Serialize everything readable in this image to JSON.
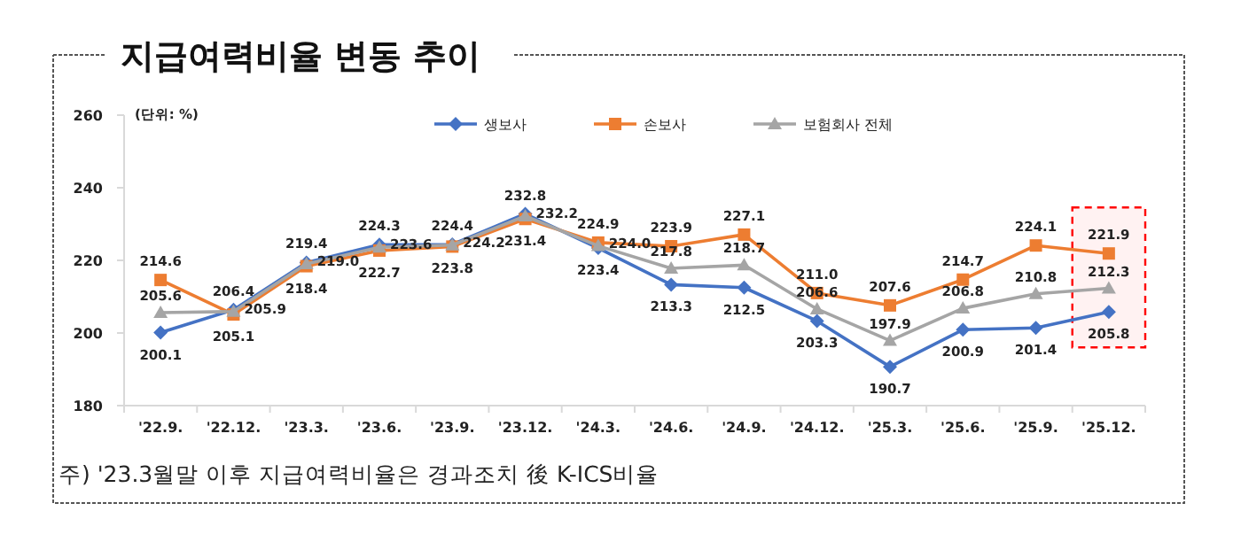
{
  "chart_data": {
    "type": "line",
    "title": "지급여력비율 변동 추이",
    "categories": [
      "'22.9.",
      "'22.12.",
      "'23.3.",
      "'23.6.",
      "'23.9.",
      "'23.12.",
      "'24.3.",
      "'24.6.",
      "'24.9.",
      "'24.12.",
      "'25.3.",
      "'25.6.",
      "'25.9.",
      "'25.12."
    ],
    "series": [
      {
        "name": "생보사",
        "color": "#4472c4",
        "marker": "diamond",
        "values": [
          200.1,
          206.4,
          219.4,
          224.3,
          224.4,
          232.8,
          223.4,
          213.3,
          212.5,
          203.3,
          190.7,
          200.9,
          201.4,
          205.8
        ]
      },
      {
        "name": "손보사",
        "color": "#ed7d31",
        "marker": "square",
        "values": [
          214.6,
          205.1,
          218.4,
          222.7,
          223.8,
          231.4,
          224.9,
          223.9,
          227.1,
          211.0,
          207.6,
          214.7,
          224.1,
          221.9
        ],
        "value_labels": [
          "214.6",
          "205.1",
          "218.4",
          "222.7",
          "223.8",
          "231.4",
          "224.9",
          "223.9",
          "227.1",
          "211.0",
          "207.6",
          "214.7",
          "224.1",
          "221.9"
        ]
      },
      {
        "name": "보험회사 전체",
        "color": "#a5a5a5",
        "marker": "triangle",
        "values": [
          205.6,
          205.9,
          219.0,
          223.6,
          224.2,
          232.2,
          224.0,
          217.8,
          218.7,
          206.6,
          197.9,
          206.8,
          210.8,
          212.3
        ],
        "value_labels": [
          "205.6",
          "205.9",
          "219.0",
          "223.6",
          "224.2",
          "232.2",
          "224.0",
          "217.8",
          "218.7",
          "206.6",
          "197.9",
          "206.8",
          "210.8",
          "212.3"
        ]
      }
    ],
    "ylim": [
      180,
      260
    ],
    "yticks": [
      180,
      200,
      220,
      240,
      260
    ],
    "grid": false,
    "legend": "top",
    "data_labels": true,
    "bands": [
      {
        "axis": "x",
        "from": "'25.12.",
        "to": "'25.12.",
        "color": "#ff0000"
      }
    ],
    "annotations": [
      "(단위: %)",
      "주) '23.3월말 이후 지급여력비율은 경과조치 後 K-ICS비율"
    ]
  }
}
